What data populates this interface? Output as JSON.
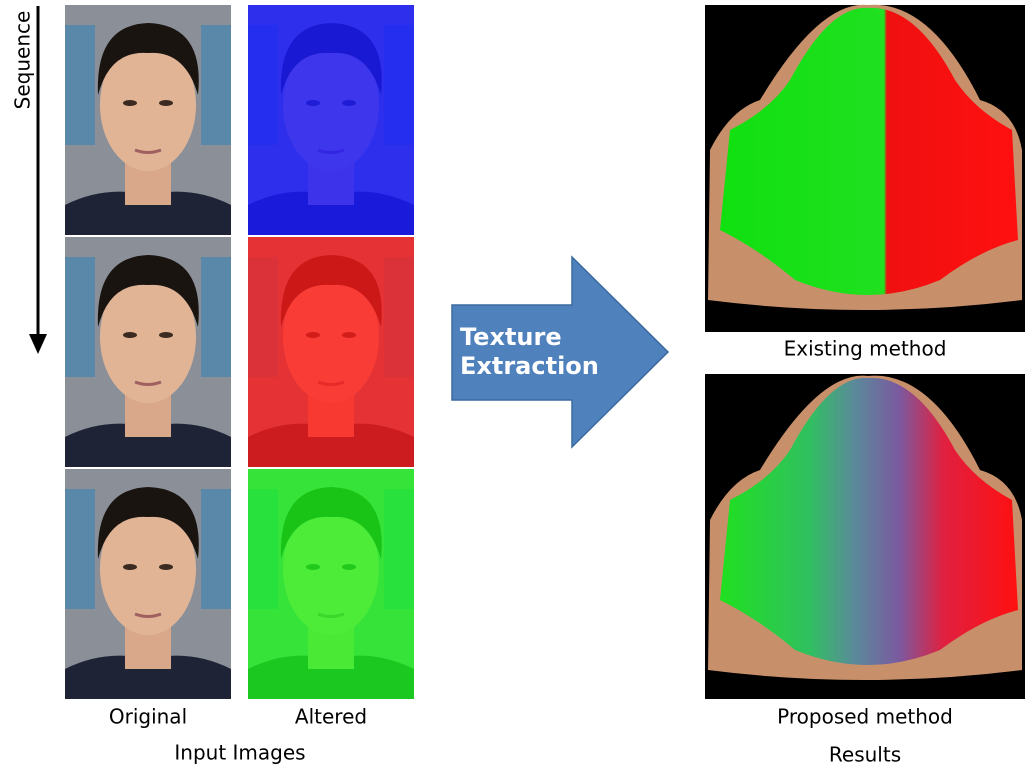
{
  "sequence_label": "Sequence",
  "input": {
    "columns": [
      "Original",
      "Altered"
    ],
    "caption": "Input Images"
  },
  "process": {
    "label_lines": [
      "Texture",
      "Extraction"
    ]
  },
  "results": {
    "items": [
      "Existing method",
      "Proposed method"
    ],
    "caption": "Results"
  }
}
